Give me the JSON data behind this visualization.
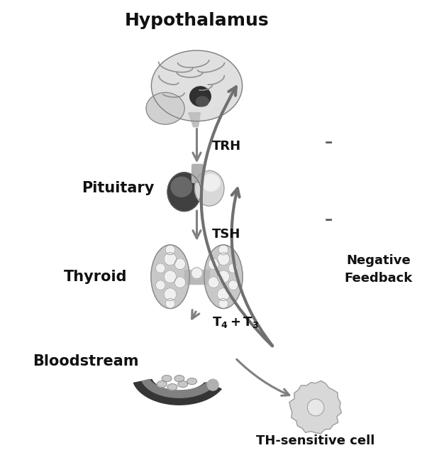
{
  "labels": {
    "hypothalamus": "Hypothalamus",
    "pituitary": "Pituitary",
    "thyroid": "Thyroid",
    "bloodstream": "Bloodstream",
    "th_cell": "TH-sensitive cell",
    "trh": "TRH",
    "tsh": "TSH",
    "hormones": "T₄ + T₃",
    "negative_feedback": "Negative\nFeedback",
    "minus": "–"
  },
  "colors": {
    "background": "#ffffff",
    "text": "#111111",
    "arrow": "#808080",
    "dark_gray": "#505050",
    "mid_gray": "#909090",
    "light_gray": "#d0d0d0",
    "very_light": "#e8e8e8"
  },
  "font_sizes": {
    "title": 18,
    "organ_label": 15,
    "small": 12,
    "feedback": 13
  }
}
